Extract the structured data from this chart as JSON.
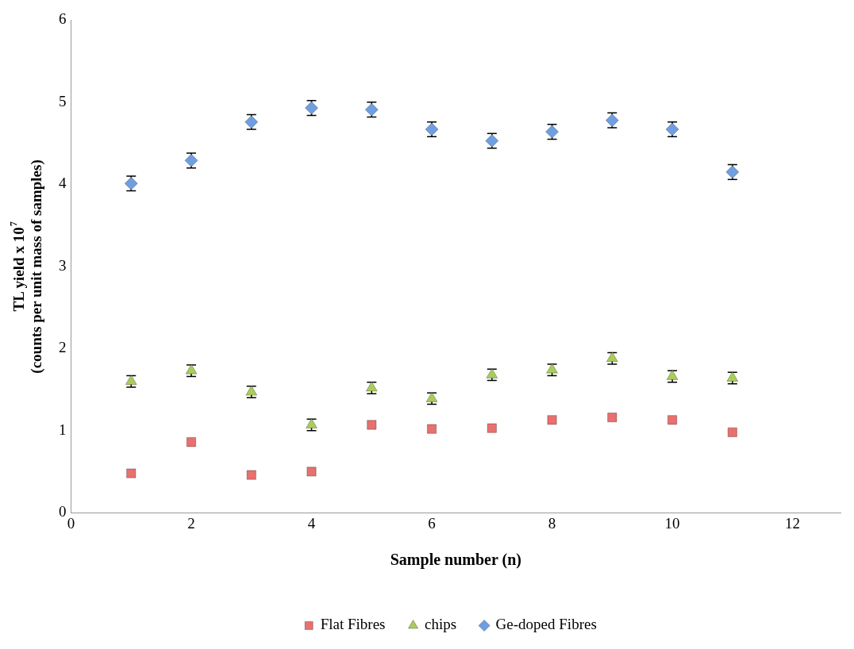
{
  "chart_data": {
    "type": "scatter",
    "xlabel": "Sample number (n)",
    "ylabel": "TL yield x 10$^{7}$\n(counts per unit mass of samples)",
    "x": [
      1,
      2,
      3,
      4,
      5,
      6,
      7,
      8,
      9,
      10,
      11
    ],
    "xlim": [
      0,
      12.8
    ],
    "xticks": [
      0,
      2,
      4,
      6,
      8,
      10,
      12
    ],
    "ylim": [
      0,
      6
    ],
    "yticks": [
      0,
      1,
      2,
      3,
      4,
      5,
      6
    ],
    "grid": false,
    "legend": "bottom",
    "series": [
      {
        "name": "Flat Fibres",
        "color": "#e8706e",
        "marker": "square",
        "values": [
          0.48,
          0.86,
          0.46,
          0.5,
          1.07,
          1.02,
          1.03,
          1.13,
          1.16,
          1.13,
          0.98
        ]
      },
      {
        "name": "chips",
        "color": "#a9cc5b",
        "marker": "triangle",
        "values": [
          1.6,
          1.73,
          1.47,
          1.07,
          1.52,
          1.39,
          1.68,
          1.74,
          1.88,
          1.66,
          1.64
        ],
        "errors": [
          0.07,
          0.07,
          0.07,
          0.07,
          0.07,
          0.07,
          0.07,
          0.07,
          0.07,
          0.07,
          0.07
        ]
      },
      {
        "name": "Ge-doped Fibres",
        "color": "#6f9fe0",
        "marker": "diamond",
        "values": [
          4.01,
          4.29,
          4.76,
          4.93,
          4.91,
          4.67,
          4.53,
          4.64,
          4.78,
          4.67,
          4.15
        ],
        "errors": [
          0.09,
          0.09,
          0.09,
          0.09,
          0.09,
          0.09,
          0.09,
          0.09,
          0.09,
          0.09,
          0.09
        ]
      }
    ]
  }
}
